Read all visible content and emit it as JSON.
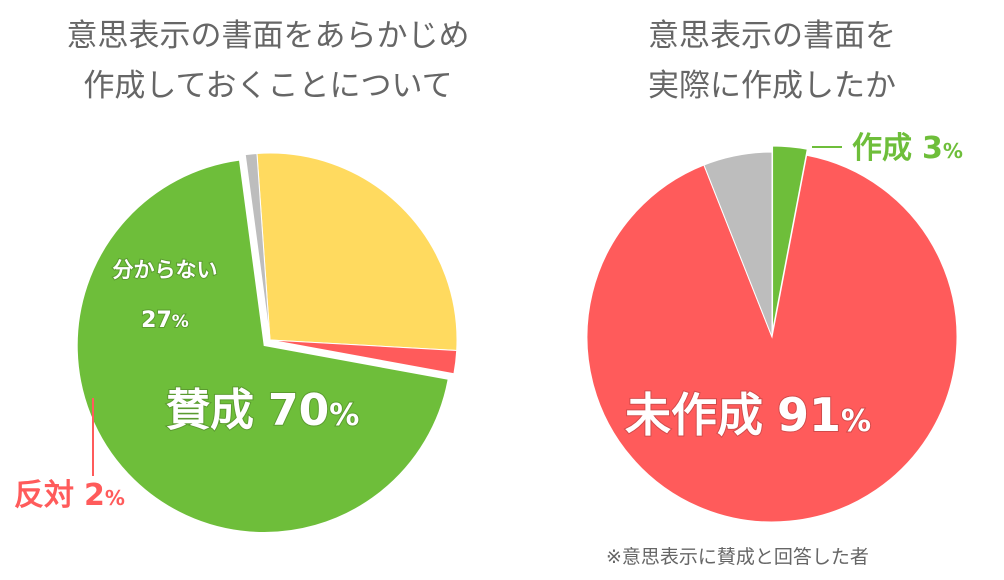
{
  "chart_data": [
    {
      "type": "pie",
      "title_lines": [
        "意思表示の書面をあらかじめ",
        "作成しておくことについて"
      ],
      "start_angle_deg": -4,
      "slices": [
        {
          "label": "分からない",
          "value": 27,
          "value_text": "27",
          "unit": "%",
          "color": "#FFDA5F"
        },
        {
          "label": "反対",
          "value": 2,
          "value_text": "2",
          "unit": "%",
          "color": "#FF5B5B"
        },
        {
          "label": "賛成",
          "value": 70,
          "value_text": "70",
          "unit": "%",
          "color": "#6EBE3A",
          "exploded": true
        },
        {
          "label": "",
          "value": 1,
          "value_text": "",
          "unit": "",
          "color": "#BDBDBD"
        }
      ]
    },
    {
      "type": "pie",
      "title_lines": [
        "意思表示の書面を",
        "実際に作成したか"
      ],
      "start_angle_deg": 0,
      "slices": [
        {
          "label": "作成",
          "value": 3,
          "value_text": "3",
          "unit": "%",
          "color": "#6EBE3A",
          "exploded": true
        },
        {
          "label": "未作成",
          "value": 91,
          "value_text": "91",
          "unit": "%",
          "color": "#FF5B5B"
        },
        {
          "label": "",
          "value": 6,
          "value_text": "",
          "unit": "",
          "color": "#BDBDBD"
        }
      ],
      "footnote": "※意思表示に賛成と回答した者"
    }
  ]
}
